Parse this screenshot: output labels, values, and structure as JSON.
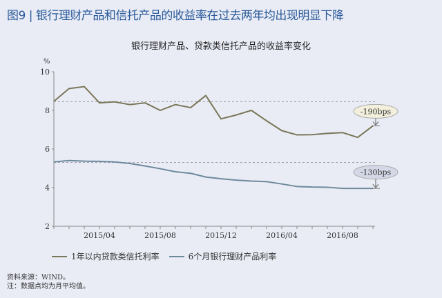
{
  "figure_title": "图9 | 银行理财产品和信托产品的收益率在过去两年均出现明显下降",
  "notes": [
    "资料来源：WIND。",
    "注：数据点均为月平均值。"
  ],
  "colors": {
    "trust": "#7a7658",
    "wealth": "#6d8a9c",
    "dash": "#9a9aa8",
    "bubble1": "#f2f0dc",
    "bubble2": "#d4d8e6"
  },
  "chart_data": {
    "type": "line",
    "title": "银行理财产品、贷款类信托产品的收益率变化",
    "ylabel": "%",
    "ylim": [
      2,
      10
    ],
    "yticks": [
      2,
      4,
      6,
      8,
      10
    ],
    "x": [
      "2015/01",
      "2015/02",
      "2015/03",
      "2015/04",
      "2015/05",
      "2015/06",
      "2015/07",
      "2015/08",
      "2015/09",
      "2015/10",
      "2015/11",
      "2015/12",
      "2016/01",
      "2016/02",
      "2016/03",
      "2016/04",
      "2016/05",
      "2016/06",
      "2016/07",
      "2016/08",
      "2016/09",
      "2016/10"
    ],
    "xtick_labels": [
      "2015/04",
      "2015/08",
      "2015/12",
      "2016/04",
      "2016/08"
    ],
    "series": [
      {
        "name": "1年以内贷款类信托利率",
        "values": [
          8.47,
          9.13,
          9.23,
          8.39,
          8.44,
          8.3,
          8.39,
          8.0,
          8.3,
          8.14,
          8.77,
          7.56,
          7.76,
          8.0,
          7.46,
          6.95,
          6.73,
          6.74,
          6.81,
          6.85,
          6.6,
          7.2
        ]
      },
      {
        "name": "6个月银行理财产品利率",
        "values": [
          5.33,
          5.4,
          5.37,
          5.36,
          5.33,
          5.25,
          5.12,
          4.98,
          4.82,
          4.74,
          4.55,
          4.46,
          4.39,
          4.34,
          4.31,
          4.19,
          4.06,
          4.03,
          4.02,
          3.96,
          3.96,
          3.96
        ]
      }
    ],
    "reference_lines": [
      8.45,
      5.3
    ],
    "annotations": [
      "-190bps",
      "-130bps"
    ],
    "grid": false,
    "legend": "bottom"
  }
}
